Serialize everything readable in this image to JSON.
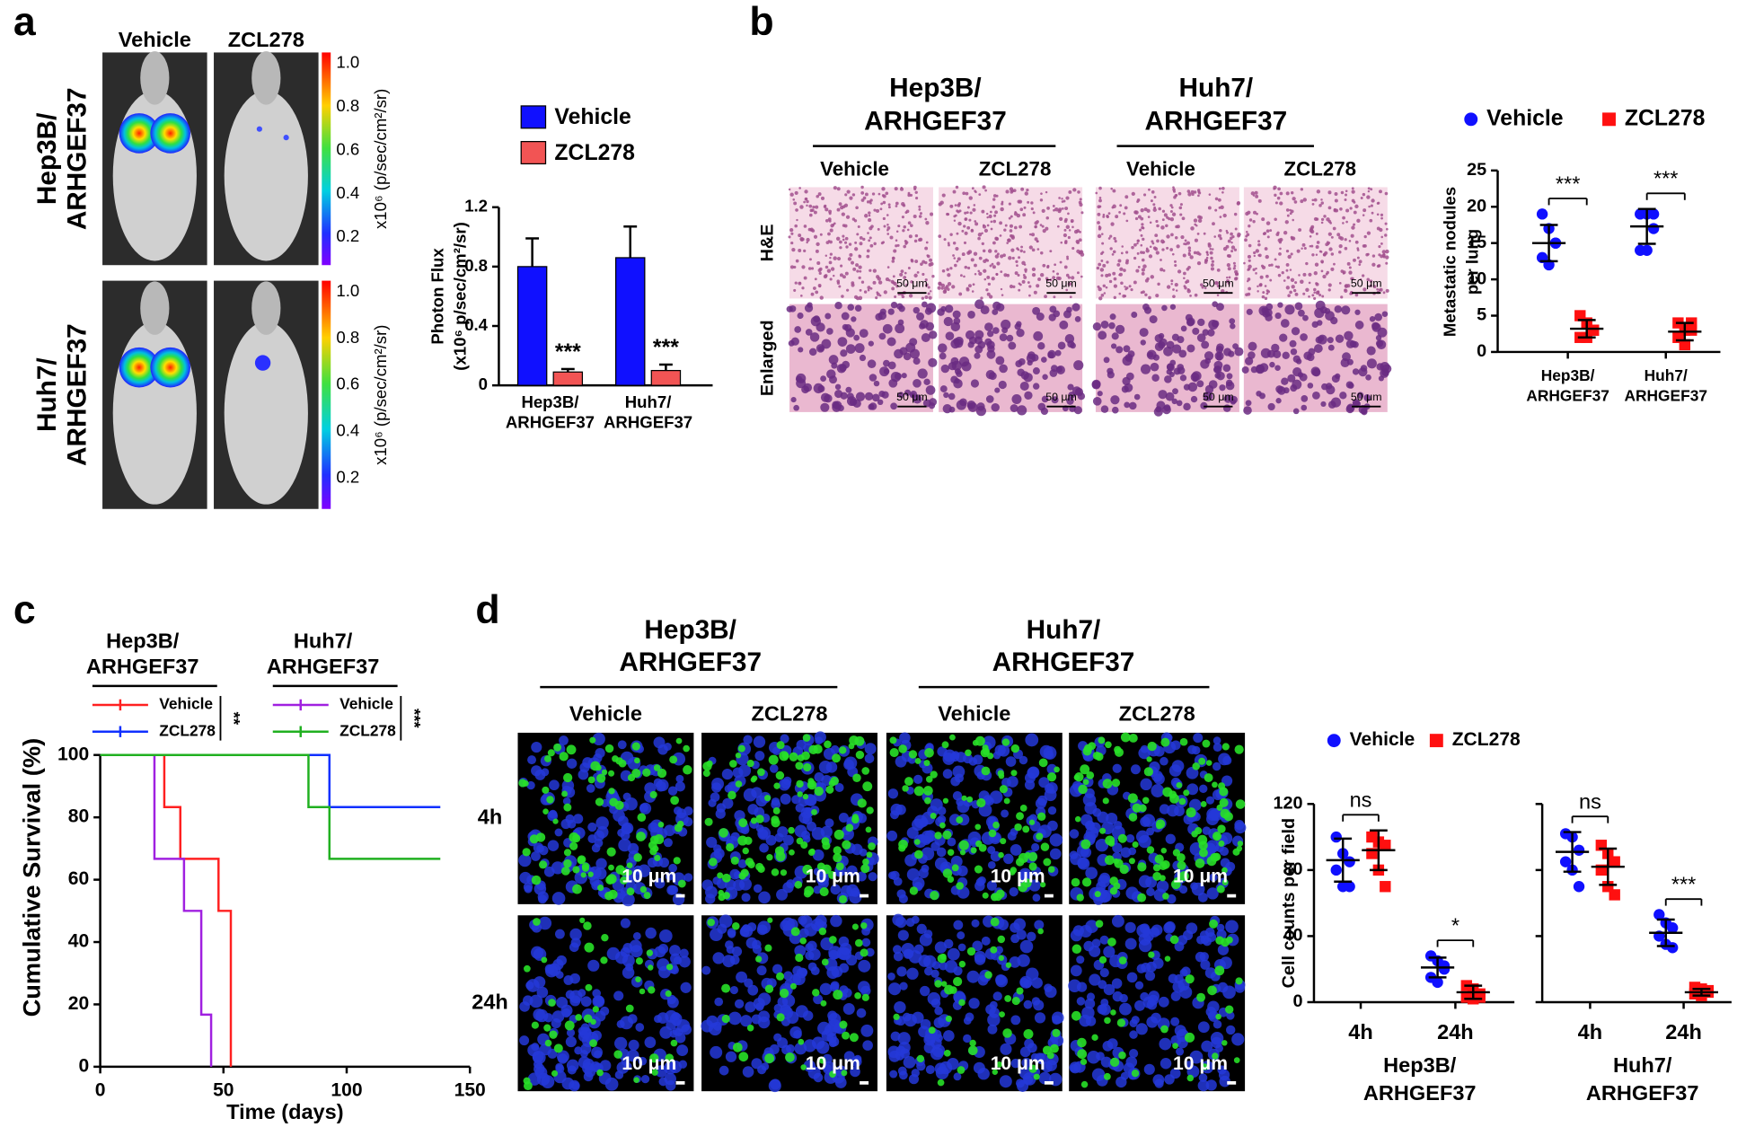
{
  "figure": {
    "panel_labels": [
      "a",
      "b",
      "c",
      "d"
    ],
    "a": {
      "columns": [
        "Vehicle",
        "ZCL278"
      ],
      "rows": [
        "Hep3B/\nARHGEF37",
        "Huh7/\nARHGEF37"
      ],
      "colorbar_ticks": [
        "1.0",
        "0.8",
        "0.6",
        "0.4",
        "0.2"
      ],
      "colorbar_label": "x10⁶ (p/sec/cm²/sr)"
    },
    "b": {
      "groups": [
        "Hep3B/\nARHGEF37",
        "Huh7/\nARHGEF37"
      ],
      "columns": [
        "Vehicle",
        "ZCL278",
        "Vehicle",
        "ZCL278"
      ],
      "rows": [
        "H&E",
        "Enlarged"
      ],
      "scale_bar": "50 μm"
    },
    "d": {
      "groups": [
        "Hep3B/\nARHGEF37",
        "Huh7/\nARHGEF37"
      ],
      "columns": [
        "Vehicle",
        "ZCL278",
        "Vehicle",
        "ZCL278"
      ],
      "rows": [
        "4h",
        "24h"
      ],
      "scale_bar": "10 μm"
    }
  },
  "chart_data": [
    {
      "type": "bar",
      "ylabel": "Photon Flux\n(x10⁶ p/sec/cm²/sr)",
      "categories": [
        "Hep3B/\nARHGEF37",
        "Huh7/\nARHGEF37"
      ],
      "series": [
        {
          "name": "Vehicle",
          "color": "#1010ff",
          "values": [
            0.8,
            0.86
          ],
          "errors": [
            0.19,
            0.21
          ]
        },
        {
          "name": "ZCL278",
          "color": "#f25454",
          "values": [
            0.09,
            0.1
          ],
          "errors": [
            0.02,
            0.04
          ]
        }
      ],
      "annotations": [
        "***",
        "***"
      ],
      "ylim": [
        0,
        1.2
      ],
      "yticks": [
        0,
        0.4,
        0.8,
        1.2
      ]
    },
    {
      "type": "dot",
      "ylabel": "Metastatic nodules\nper lung",
      "series": [
        {
          "name": "Vehicle",
          "color": "#1010ff",
          "marker": "circle"
        },
        {
          "name": "ZCL278",
          "color": "#ff1010",
          "marker": "square"
        }
      ],
      "panels": [
        {
          "categories": [
            "Hep3B/\nARHGEF37",
            "Huh7/\nARHGEF37"
          ],
          "series": [
            {
              "values": [
                [
                  19,
                  17,
                  15,
                  13,
                  12,
                  15
                ],
                [
                  19,
                  19,
                  17,
                  14,
                  14,
                  19
                ]
              ],
              "means": [
                15,
                17.3
              ],
              "sd": [
                2.5,
                2.4
              ]
            },
            {
              "values": [
                [
                  5,
                  4,
                  3,
                  2,
                  2,
                  3
                ],
                [
                  4,
                  3,
                  3,
                  2,
                  1,
                  4
                ]
              ],
              "means": [
                3.2,
                2.8
              ],
              "sd": [
                1.2,
                1.2
              ]
            }
          ],
          "annotations": [
            "***",
            "***"
          ]
        }
      ],
      "ylim": [
        0,
        25
      ],
      "yticks": [
        0,
        5,
        10,
        15,
        20,
        25
      ]
    },
    {
      "type": "step",
      "xlabel": "Time (days)",
      "ylabel": "Cumulative Survival (%)",
      "groups": [
        {
          "title": "Hep3B/\nARHGEF37",
          "significance": "**"
        },
        {
          "title": "Huh7/\nARHGEF37",
          "significance": "***"
        }
      ],
      "series": [
        {
          "name": "Vehicle",
          "group": 0,
          "color": "#ff2020",
          "x": [
            0,
            26,
            26,
            32.5,
            32.5,
            48,
            48,
            53,
            53
          ],
          "values": [
            100,
            100,
            83.3,
            83.3,
            66.7,
            66.7,
            50,
            50,
            0
          ]
        },
        {
          "name": "ZCL278",
          "group": 0,
          "color": "#1030ff",
          "x": [
            0,
            93,
            93,
            138
          ],
          "values": [
            100,
            100,
            83.3,
            83.3
          ]
        },
        {
          "name": "Vehicle",
          "group": 1,
          "color": "#a020e0",
          "x": [
            0,
            22,
            22,
            34,
            34,
            41,
            41,
            45,
            45
          ],
          "values": [
            100,
            100,
            66.7,
            66.7,
            50,
            50,
            16.7,
            16.7,
            0
          ]
        },
        {
          "name": "ZCL278",
          "group": 1,
          "color": "#20b020",
          "x": [
            0,
            84.5,
            84.5,
            93,
            93,
            138
          ],
          "values": [
            100,
            100,
            83.3,
            83.3,
            66.7,
            66.7
          ]
        }
      ],
      "xlim": [
        0,
        150
      ],
      "xticks": [
        0,
        50,
        100,
        150
      ],
      "ylim": [
        0,
        100
      ],
      "yticks": [
        0,
        20,
        40,
        60,
        80,
        100
      ]
    },
    {
      "type": "dot",
      "ylabel": "Cell counts per field",
      "series": [
        {
          "name": "Vehicle",
          "color": "#1010ff",
          "marker": "circle"
        },
        {
          "name": "ZCL278",
          "color": "#ff1010",
          "marker": "square"
        }
      ],
      "panels": [
        {
          "xlabel": "Hep3B/\nARHGEF37",
          "categories": [
            "4h",
            "24h"
          ],
          "series": [
            {
              "values": [
                [
                  100,
                  90,
                  85,
                  80,
                  70,
                  70
                ],
                [
                  28,
                  25,
                  20,
                  15,
                  12,
                  22
                ]
              ],
              "means": [
                86,
                21
              ],
              "sd": [
                13,
                6
              ]
            },
            {
              "values": [
                [
                  100,
                  97,
                  95,
                  90,
                  80,
                  70
                ],
                [
                  10,
                  8,
                  5,
                  3,
                  2,
                  3
                ]
              ],
              "means": [
                92,
                6
              ],
              "sd": [
                12,
                4
              ]
            }
          ],
          "annotations": [
            "ns",
            "*"
          ]
        },
        {
          "xlabel": "Huh7/\nARHGEF37",
          "categories": [
            "4h",
            "24h"
          ],
          "series": [
            {
              "values": [
                [
                  102,
                  100,
                  92,
                  85,
                  80,
                  70
                ],
                [
                  53,
                  48,
                  45,
                  40,
                  35,
                  33
                ]
              ],
              "means": [
                91,
                42
              ],
              "sd": [
                12,
                8
              ]
            },
            {
              "values": [
                [
                  95,
                  90,
                  85,
                  80,
                  70,
                  65
                ],
                [
                  9,
                  8,
                  7,
                  5,
                  4,
                  6
                ]
              ],
              "means": [
                82,
                6
              ],
              "sd": [
                11,
                2
              ]
            }
          ],
          "annotations": [
            "ns",
            "***"
          ]
        }
      ],
      "ylim": [
        0,
        120
      ],
      "yticks": [
        0,
        40,
        80,
        120
      ]
    }
  ]
}
